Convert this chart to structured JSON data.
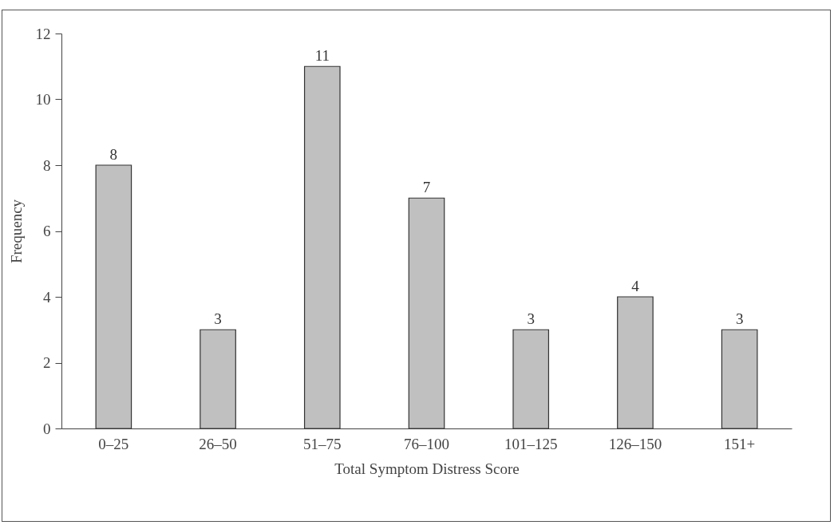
{
  "chart_data": {
    "type": "bar",
    "xlabel": "Total Symptom Distress Score",
    "ylabel": "Frequency",
    "categories": [
      "0–25",
      "26–50",
      "51–75",
      "76–100",
      "101–125",
      "126–150",
      "151+"
    ],
    "values": [
      8,
      3,
      11,
      7,
      3,
      4,
      3
    ],
    "color": "#c0c0c0",
    "ylim": [
      0,
      12
    ],
    "yticks": [
      0,
      2,
      4,
      6,
      8,
      10,
      12
    ],
    "grid": false,
    "data_labels": true
  }
}
